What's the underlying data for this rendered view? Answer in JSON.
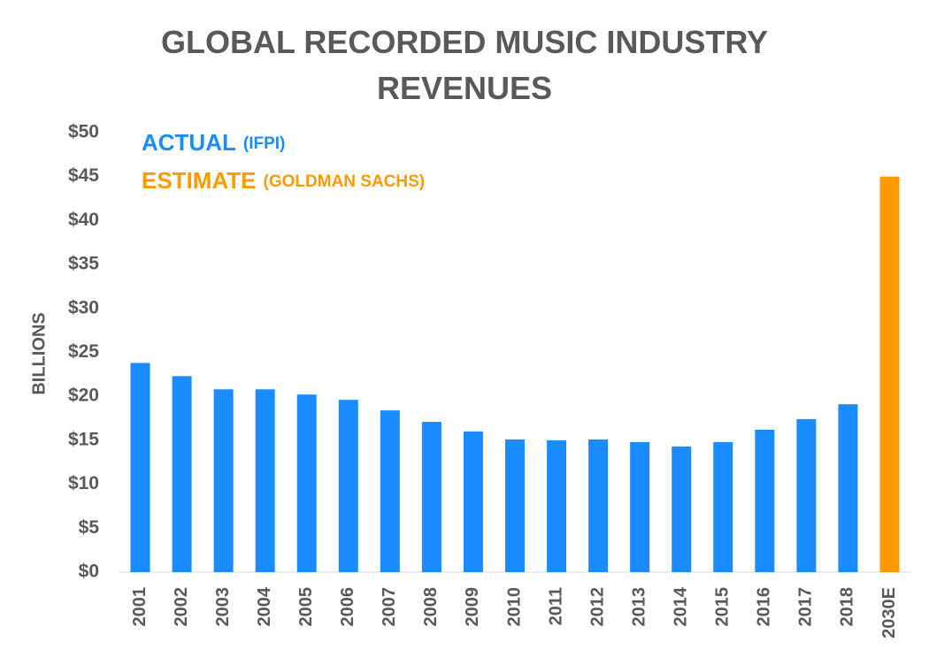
{
  "chart_data": {
    "type": "bar",
    "title": "GLOBAL RECORDED MUSIC INDUSTRY REVENUES",
    "y_label": "BILLIONS",
    "categories": [
      "2001",
      "2002",
      "2003",
      "2004",
      "2005",
      "2006",
      "2007",
      "2008",
      "2009",
      "2010",
      "2011",
      "2012",
      "2013",
      "2014",
      "2015",
      "2016",
      "2017",
      "2018",
      "2030E"
    ],
    "series": [
      {
        "name": "ACTUAL",
        "source": "(IFPI)",
        "color": "#1a8cff",
        "values": [
          23.8,
          22.3,
          20.8,
          20.8,
          20.2,
          19.6,
          18.4,
          17.1,
          16.0,
          15.1,
          15.0,
          15.1,
          14.8,
          14.3,
          14.8,
          16.2,
          17.4,
          19.1,
          null
        ]
      },
      {
        "name": "ESTIMATE",
        "source": "(GOLDMAN SACHS)",
        "color": "#ff9900",
        "values": [
          null,
          null,
          null,
          null,
          null,
          null,
          null,
          null,
          null,
          null,
          null,
          null,
          null,
          null,
          null,
          null,
          null,
          null,
          45
        ]
      }
    ],
    "ylim": [
      0,
      50
    ],
    "yticks": [
      {
        "value": 0,
        "label": "$0"
      },
      {
        "value": 5,
        "label": "$5"
      },
      {
        "value": 10,
        "label": "$10"
      },
      {
        "value": 15,
        "label": "$15"
      },
      {
        "value": 20,
        "label": "$20"
      },
      {
        "value": 25,
        "label": "$25"
      },
      {
        "value": 30,
        "label": "$30"
      },
      {
        "value": 35,
        "label": "$35"
      },
      {
        "value": 40,
        "label": "$40"
      },
      {
        "value": 45,
        "label": "$45"
      },
      {
        "value": 50,
        "label": "$50"
      }
    ],
    "grid": false
  }
}
